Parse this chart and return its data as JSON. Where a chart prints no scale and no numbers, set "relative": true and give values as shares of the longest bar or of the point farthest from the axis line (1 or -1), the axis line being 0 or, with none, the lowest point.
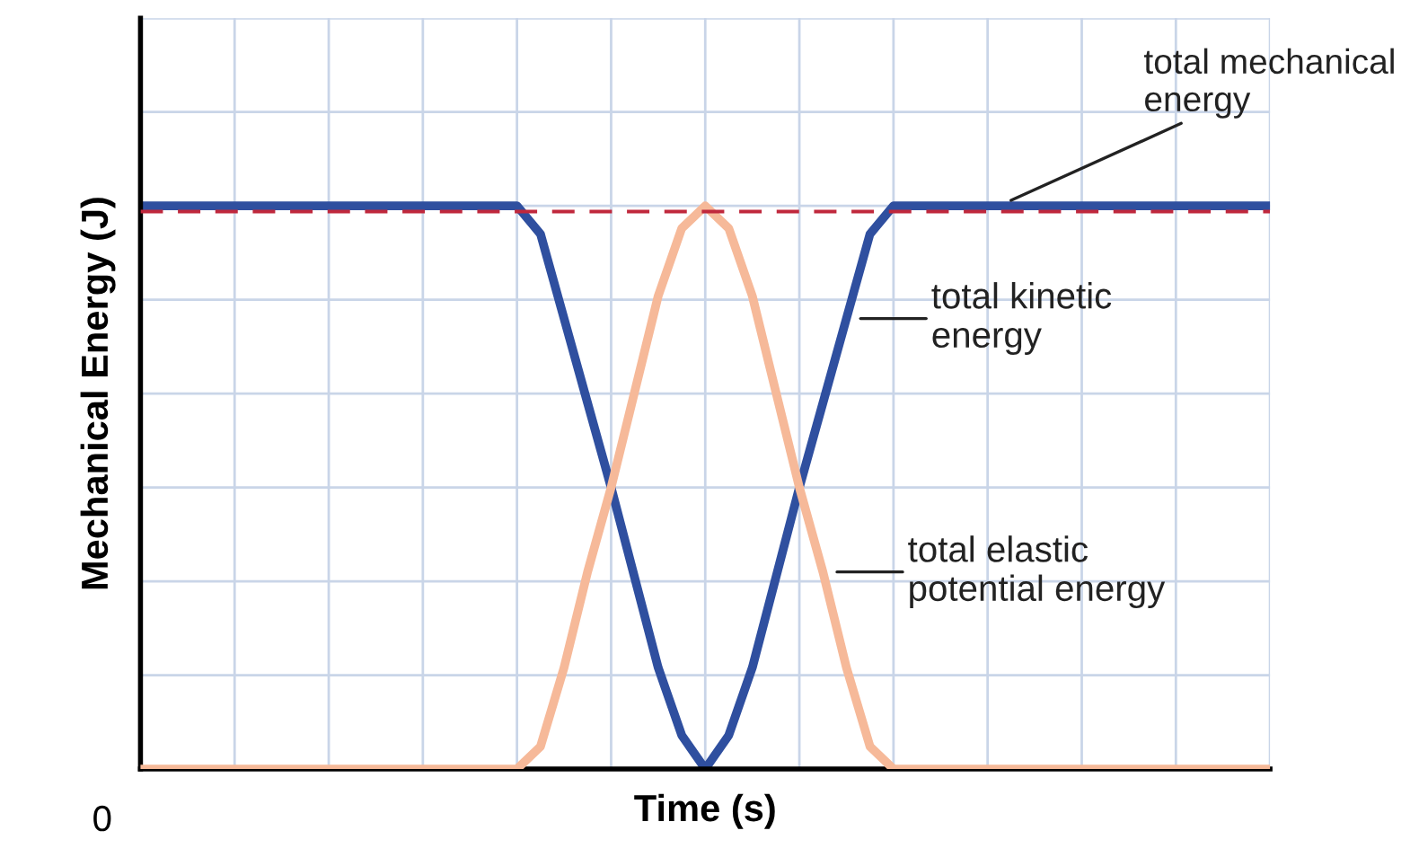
{
  "chart_data": {
    "type": "line",
    "relative": true,
    "xlabel": "Time (s)",
    "ylabel": "Mechanical Energy (J)",
    "categories": [
      null,
      null,
      null,
      null,
      null,
      null,
      null,
      null,
      null,
      null,
      null,
      null,
      null,
      null,
      null,
      null,
      null,
      null,
      null,
      null,
      null,
      null,
      null,
      null,
      null,
      null,
      null,
      null,
      null,
      null,
      null,
      null,
      null,
      null,
      null,
      null,
      null,
      null,
      null,
      null,
      null,
      null,
      null,
      null,
      null,
      null,
      null,
      null,
      null
    ],
    "series": [
      {
        "name": "total elastic\npotential energy",
        "color": "#f6b999",
        "values": [
          0,
          0,
          0,
          0,
          0,
          0,
          0,
          0,
          0,
          0,
          0,
          0,
          0,
          0,
          0,
          0,
          0,
          0.04,
          0.18,
          0.35,
          0.5,
          0.67,
          0.84,
          0.96,
          1,
          0.96,
          0.84,
          0.67,
          0.5,
          0.35,
          0.18,
          0.04,
          0,
          0,
          0,
          0,
          0,
          0,
          0,
          0,
          0,
          0,
          0,
          0,
          0,
          0,
          0,
          0,
          0
        ]
      },
      {
        "name": "total kinetic\nenergy",
        "color": "#2f4f9f",
        "values": [
          1,
          1,
          1,
          1,
          1,
          1,
          1,
          1,
          1,
          1,
          1,
          1,
          1,
          1,
          1,
          1,
          1,
          0.95,
          0.8,
          0.65,
          0.5,
          0.34,
          0.18,
          0.06,
          0,
          0.06,
          0.18,
          0.34,
          0.5,
          0.65,
          0.8,
          0.95,
          1,
          1,
          1,
          1,
          1,
          1,
          1,
          1,
          1,
          1,
          1,
          1,
          1,
          1,
          1,
          1,
          1
        ]
      }
    ],
    "ref_lines": [
      {
        "axis": "y",
        "value": 0.99,
        "label": "total mechanical\nenergy",
        "color": "#c0283c",
        "line_style": "dashed"
      }
    ],
    "annotations": [
      "0"
    ],
    "grid": true
  }
}
